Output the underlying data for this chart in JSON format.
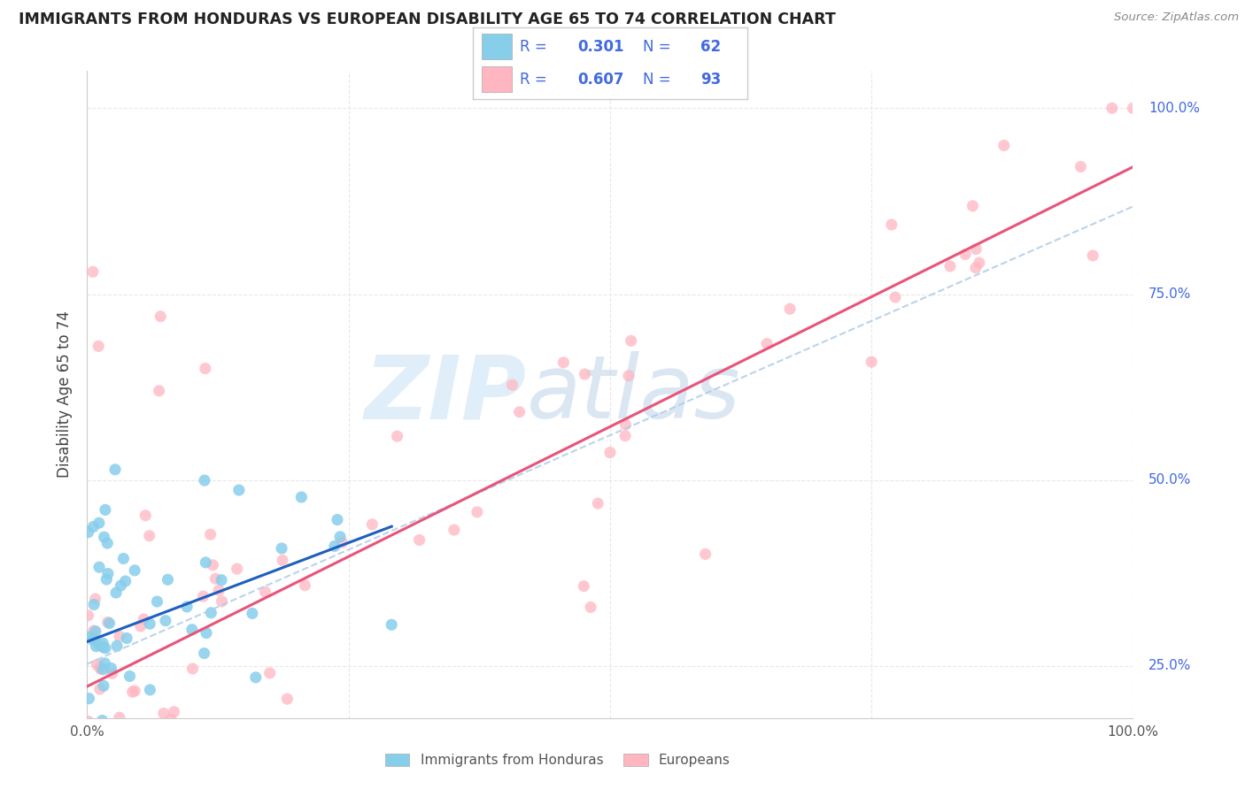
{
  "title": "IMMIGRANTS FROM HONDURAS VS EUROPEAN DISABILITY AGE 65 TO 74 CORRELATION CHART",
  "source": "Source: ZipAtlas.com",
  "ylabel": "Disability Age 65 to 74",
  "legend_label1": "Immigrants from Honduras",
  "legend_label2": "Europeans",
  "legend_R1": "0.301",
  "legend_N1": "62",
  "legend_R2": "0.607",
  "legend_N2": "93",
  "color_honduras": "#87CEEB",
  "color_european": "#FFB6C1",
  "color_trend_honduras": "#1E5FBF",
  "color_trend_european": "#E8547A",
  "color_dashed": "#b0cce8",
  "color_ytick": "#4169E1",
  "color_xtick": "#555555",
  "background_color": "#ffffff",
  "grid_color": "#e8e8e8",
  "watermark_zip_color": "#cce4f5",
  "watermark_atlas_color": "#b8cfe8"
}
